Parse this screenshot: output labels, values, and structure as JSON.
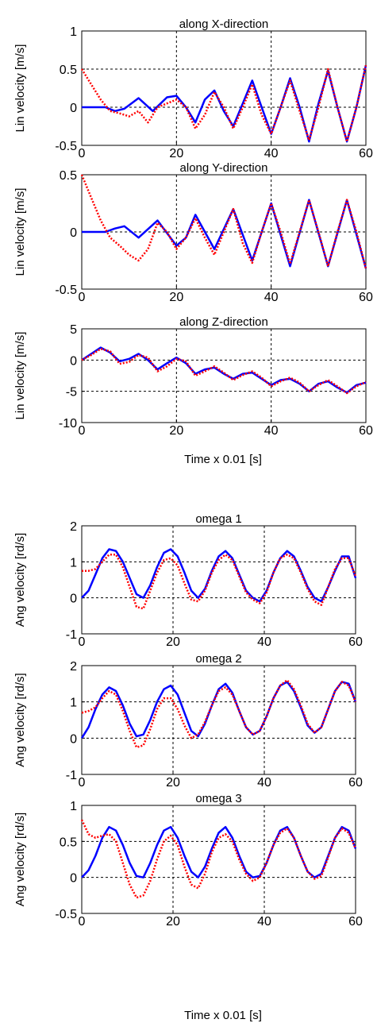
{
  "figure": {
    "xlabel_lin": "Time x 0.01 [s]",
    "xlabel_ang": "Time x 0.01 [s]"
  },
  "colors": {
    "actual": "#0000ff",
    "reference": "#ff0000",
    "grid": "#000000"
  },
  "chart_data": [
    {
      "type": "line",
      "title": "along X-direction",
      "ylabel": "Lin velocity [m/s]",
      "xlim": [
        0,
        60
      ],
      "ylim": [
        -0.5,
        1
      ],
      "xticks": [
        "0",
        "20",
        "40",
        "60"
      ],
      "yticks": [
        "-0.5",
        "0",
        "0.5",
        "1"
      ],
      "ytick_values": [
        -0.5,
        0,
        0.5,
        1
      ],
      "grid": true,
      "series": [
        {
          "style": "solid-blue",
          "x": [
            0,
            5,
            7,
            9,
            12,
            15,
            18,
            20,
            22,
            24,
            26,
            28,
            30,
            32,
            34,
            36,
            38,
            40,
            42,
            44,
            46,
            48,
            50,
            52,
            54,
            56,
            58,
            60
          ],
          "y": [
            0,
            0,
            -0.05,
            -0.02,
            0.12,
            -0.05,
            0.13,
            0.15,
            0.0,
            -0.2,
            0.1,
            0.22,
            -0.05,
            -0.25,
            0.05,
            0.35,
            0.0,
            -0.35,
            0.0,
            0.38,
            0.0,
            -0.45,
            0.05,
            0.48,
            0.0,
            -0.45,
            0.0,
            0.55
          ]
        },
        {
          "style": "dotted-red",
          "x": [
            0,
            2,
            4,
            6,
            8,
            10,
            12,
            14,
            16,
            18,
            20,
            22,
            24,
            26,
            28,
            30,
            32,
            34,
            36,
            38,
            40,
            42,
            44,
            46,
            48,
            50,
            52,
            54,
            56,
            58,
            60
          ],
          "y": [
            0.5,
            0.3,
            0.1,
            -0.05,
            -0.08,
            -0.12,
            -0.05,
            -0.2,
            0.0,
            0.05,
            0.1,
            0.0,
            -0.28,
            -0.1,
            0.2,
            0.0,
            -0.28,
            0.0,
            0.3,
            -0.1,
            -0.35,
            0.0,
            0.35,
            -0.05,
            -0.43,
            0.0,
            0.5,
            0.0,
            -0.45,
            0.0,
            0.55
          ]
        }
      ]
    },
    {
      "type": "line",
      "title": "along Y-direction",
      "ylabel": "Lin velocity [m/s]",
      "xlim": [
        0,
        60
      ],
      "ylim": [
        -0.5,
        0.5
      ],
      "xticks": [
        "0",
        "20",
        "40",
        "60"
      ],
      "yticks": [
        "-0.5",
        "0",
        "0.5"
      ],
      "ytick_values": [
        -0.5,
        0,
        0.5
      ],
      "grid": true,
      "series": [
        {
          "style": "solid-blue",
          "x": [
            0,
            5,
            7,
            9,
            12,
            16,
            20,
            22,
            24,
            28,
            32,
            36,
            40,
            44,
            48,
            52,
            56,
            60
          ],
          "y": [
            0,
            0,
            0.03,
            0.05,
            -0.05,
            0.1,
            -0.12,
            -0.05,
            0.15,
            -0.15,
            0.2,
            -0.25,
            0.25,
            -0.3,
            0.28,
            -0.3,
            0.28,
            -0.32
          ]
        },
        {
          "style": "dotted-red",
          "x": [
            0,
            2,
            4,
            6,
            8,
            10,
            12,
            14,
            16,
            18,
            20,
            22,
            24,
            26,
            28,
            30,
            32,
            34,
            36,
            38,
            40,
            42,
            44,
            46,
            48,
            50,
            52,
            54,
            56,
            58,
            60
          ],
          "y": [
            0.5,
            0.3,
            0.1,
            -0.05,
            -0.12,
            -0.2,
            -0.25,
            -0.15,
            0.08,
            0.0,
            -0.15,
            -0.05,
            0.12,
            -0.05,
            -0.2,
            0.0,
            0.2,
            -0.1,
            -0.27,
            0.0,
            0.25,
            0.0,
            -0.28,
            0.0,
            0.28,
            0.0,
            -0.3,
            0.0,
            0.28,
            0.0,
            -0.32
          ]
        }
      ]
    },
    {
      "type": "line",
      "title": "along Z-direction",
      "ylabel": "Lin velocity [m/s]",
      "xlim": [
        0,
        60
      ],
      "ylim": [
        -10,
        5
      ],
      "xticks": [
        "0",
        "20",
        "40",
        "60"
      ],
      "yticks": [
        "-10",
        "-5",
        "0",
        "5"
      ],
      "ytick_values": [
        -10,
        -5,
        0,
        5
      ],
      "grid": true,
      "series": [
        {
          "style": "solid-blue",
          "x": [
            0,
            2,
            4,
            6,
            8,
            10,
            12,
            14,
            16,
            18,
            20,
            22,
            24,
            26,
            28,
            30,
            32,
            34,
            36,
            38,
            40,
            42,
            44,
            46,
            48,
            50,
            52,
            54,
            56,
            58,
            60
          ],
          "y": [
            0,
            1,
            2,
            1.2,
            -0.2,
            0.2,
            1,
            0,
            -1.5,
            -0.5,
            0.4,
            -0.5,
            -2.2,
            -1.5,
            -1.2,
            -2.2,
            -3,
            -2.2,
            -2,
            -3,
            -4,
            -3.2,
            -3,
            -3.8,
            -5,
            -3.8,
            -3.4,
            -4.4,
            -5.2,
            -4,
            -3.6
          ]
        },
        {
          "style": "dotted-red",
          "x": [
            0,
            2,
            4,
            6,
            8,
            10,
            12,
            14,
            16,
            18,
            20,
            22,
            24,
            26,
            28,
            30,
            32,
            34,
            36,
            38,
            40,
            42,
            44,
            46,
            48,
            50,
            52,
            54,
            56,
            58,
            60
          ],
          "y": [
            0,
            0.8,
            1.8,
            1.4,
            -0.6,
            -0.3,
            0.8,
            0.4,
            -1.8,
            -1.0,
            0.2,
            -0.2,
            -2.5,
            -1.8,
            -1.0,
            -2.0,
            -3.2,
            -2.4,
            -1.8,
            -2.8,
            -4.2,
            -3.4,
            -2.8,
            -3.6,
            -5.0,
            -4.0,
            -3.2,
            -4.2,
            -5.3,
            -4.2,
            -3.5
          ]
        }
      ]
    },
    {
      "type": "line",
      "title": "omega 1",
      "ylabel": "Ang velocity [rd/s]",
      "xlim": [
        0,
        60
      ],
      "ylim": [
        -1,
        2
      ],
      "xticks": [
        "0",
        "20",
        "40",
        "60"
      ],
      "yticks": [
        "-1",
        "0",
        "1",
        "2"
      ],
      "ytick_values": [
        -1,
        0,
        1,
        2
      ],
      "grid": true,
      "series": [
        {
          "style": "solid-blue",
          "x": [
            0,
            1.5,
            3,
            4.5,
            6,
            7.5,
            9,
            10.5,
            12,
            13.5,
            15,
            16.5,
            18,
            19.5,
            21,
            22.5,
            24,
            25.5,
            27,
            28.5,
            30,
            31.5,
            33,
            34.5,
            36,
            37.5,
            39,
            40.5,
            42,
            43.5,
            45,
            46.5,
            48,
            49.5,
            51,
            52.5,
            54,
            55.5,
            57,
            58.5,
            60
          ],
          "y": [
            0,
            0.2,
            0.65,
            1.1,
            1.35,
            1.3,
            1.0,
            0.55,
            0.1,
            0.0,
            0.35,
            0.85,
            1.25,
            1.35,
            1.15,
            0.7,
            0.2,
            0.0,
            0.25,
            0.75,
            1.15,
            1.3,
            1.1,
            0.65,
            0.2,
            0.0,
            -0.1,
            0.2,
            0.7,
            1.1,
            1.3,
            1.15,
            0.75,
            0.3,
            0.0,
            -0.1,
            0.3,
            0.75,
            1.15,
            1.15,
            0.55
          ]
        },
        {
          "style": "dotted-red",
          "x": [
            0,
            1.5,
            3,
            4.5,
            6,
            7.5,
            9,
            10.5,
            12,
            13.5,
            15,
            16.5,
            18,
            19.5,
            21,
            22.5,
            24,
            25.5,
            27,
            28.5,
            30,
            31.5,
            33,
            34.5,
            36,
            37.5,
            39,
            40.5,
            42,
            43.5,
            45,
            46.5,
            48,
            49.5,
            51,
            52.5,
            54,
            55.5,
            57,
            58.5,
            60
          ],
          "y": [
            0.75,
            0.75,
            0.8,
            1.0,
            1.2,
            1.2,
            0.85,
            0.3,
            -0.25,
            -0.3,
            0.2,
            0.7,
            1.05,
            1.1,
            0.9,
            0.4,
            -0.05,
            -0.1,
            0.2,
            0.7,
            1.05,
            1.2,
            1.05,
            0.6,
            0.15,
            -0.05,
            -0.15,
            0.15,
            0.7,
            1.1,
            1.2,
            1.1,
            0.7,
            0.25,
            -0.1,
            -0.2,
            0.3,
            0.8,
            1.1,
            1.1,
            0.6
          ]
        }
      ]
    },
    {
      "type": "line",
      "title": "omega 2",
      "ylabel": "Ang velocity [rd/s]",
      "xlim": [
        0,
        60
      ],
      "ylim": [
        -1,
        2
      ],
      "xticks": [
        "0",
        "20",
        "40",
        "60"
      ],
      "yticks": [
        "-1",
        "0",
        "1",
        "2"
      ],
      "ytick_values": [
        -1,
        0,
        1,
        2
      ],
      "grid": true,
      "series": [
        {
          "style": "solid-blue",
          "x": [
            0,
            1.5,
            3,
            4.5,
            6,
            7.5,
            9,
            10.5,
            12,
            13.5,
            15,
            16.5,
            18,
            19.5,
            21,
            22.5,
            24,
            25.5,
            27,
            28.5,
            30,
            31.5,
            33,
            34.5,
            36,
            37.5,
            39,
            40.5,
            42,
            43.5,
            45,
            46.5,
            48,
            49.5,
            51,
            52.5,
            54,
            55.5,
            57,
            58.5,
            60
          ],
          "y": [
            0,
            0.3,
            0.8,
            1.2,
            1.4,
            1.3,
            0.9,
            0.4,
            0.05,
            0.1,
            0.5,
            1.0,
            1.35,
            1.45,
            1.2,
            0.7,
            0.2,
            0.05,
            0.4,
            0.9,
            1.35,
            1.5,
            1.25,
            0.75,
            0.3,
            0.1,
            0.2,
            0.6,
            1.1,
            1.45,
            1.55,
            1.3,
            0.85,
            0.35,
            0.15,
            0.3,
            0.8,
            1.3,
            1.55,
            1.5,
            1.0
          ]
        },
        {
          "style": "dotted-red",
          "x": [
            0,
            1.5,
            3,
            4.5,
            6,
            7.5,
            9,
            10.5,
            12,
            13.5,
            15,
            16.5,
            18,
            19.5,
            21,
            22.5,
            24,
            25.5,
            27,
            28.5,
            30,
            31.5,
            33,
            34.5,
            36,
            37.5,
            39,
            40.5,
            42,
            43.5,
            45,
            46.5,
            48,
            49.5,
            51,
            52.5,
            54,
            55.5,
            57,
            58.5,
            60
          ],
          "y": [
            0.7,
            0.75,
            0.85,
            1.1,
            1.3,
            1.2,
            0.75,
            0.2,
            -0.25,
            -0.2,
            0.25,
            0.8,
            1.1,
            1.1,
            0.8,
            0.35,
            0.0,
            0.1,
            0.45,
            0.9,
            1.3,
            1.4,
            1.2,
            0.75,
            0.3,
            0.1,
            0.2,
            0.6,
            1.1,
            1.45,
            1.6,
            1.35,
            0.9,
            0.4,
            0.15,
            0.3,
            0.8,
            1.3,
            1.55,
            1.45,
            1.0
          ]
        }
      ]
    },
    {
      "type": "line",
      "title": "omega 3",
      "ylabel": "Ang velocity [rd/s]",
      "xlim": [
        0,
        60
      ],
      "ylim": [
        -0.5,
        1
      ],
      "xticks": [
        "0",
        "20",
        "40",
        "60"
      ],
      "yticks": [
        "-0.5",
        "0",
        "0.5",
        "1"
      ],
      "ytick_values": [
        -0.5,
        0,
        0.5,
        1
      ],
      "grid": true,
      "series": [
        {
          "style": "solid-blue",
          "x": [
            0,
            1.5,
            3,
            4.5,
            6,
            7.5,
            9,
            10.5,
            12,
            13.5,
            15,
            16.5,
            18,
            19.5,
            21,
            22.5,
            24,
            25.5,
            27,
            28.5,
            30,
            31.5,
            33,
            34.5,
            36,
            37.5,
            39,
            40.5,
            42,
            43.5,
            45,
            46.5,
            48,
            49.5,
            51,
            52.5,
            54,
            55.5,
            57,
            58.5,
            60
          ],
          "y": [
            0,
            0.1,
            0.3,
            0.55,
            0.7,
            0.65,
            0.45,
            0.2,
            0.02,
            0.0,
            0.2,
            0.45,
            0.65,
            0.7,
            0.55,
            0.3,
            0.08,
            0.0,
            0.15,
            0.4,
            0.62,
            0.7,
            0.55,
            0.3,
            0.08,
            0.0,
            0.02,
            0.2,
            0.45,
            0.65,
            0.7,
            0.55,
            0.3,
            0.08,
            0.0,
            0.05,
            0.3,
            0.55,
            0.7,
            0.65,
            0.4
          ]
        },
        {
          "style": "dotted-red",
          "x": [
            0,
            1.5,
            3,
            4.5,
            6,
            7.5,
            9,
            10.5,
            12,
            13.5,
            15,
            16.5,
            18,
            19.5,
            21,
            22.5,
            24,
            25.5,
            27,
            28.5,
            30,
            31.5,
            33,
            34.5,
            36,
            37.5,
            39,
            40.5,
            42,
            43.5,
            45,
            46.5,
            48,
            49.5,
            51,
            52.5,
            54,
            55.5,
            57,
            58.5,
            60
          ],
          "y": [
            0.8,
            0.6,
            0.55,
            0.58,
            0.6,
            0.5,
            0.2,
            -0.1,
            -0.28,
            -0.25,
            -0.05,
            0.25,
            0.5,
            0.58,
            0.45,
            0.15,
            -0.1,
            -0.15,
            0.05,
            0.35,
            0.55,
            0.6,
            0.5,
            0.25,
            0.05,
            -0.05,
            0.0,
            0.2,
            0.45,
            0.62,
            0.68,
            0.55,
            0.3,
            0.08,
            -0.02,
            0.02,
            0.28,
            0.55,
            0.68,
            0.62,
            0.4
          ]
        }
      ]
    }
  ]
}
